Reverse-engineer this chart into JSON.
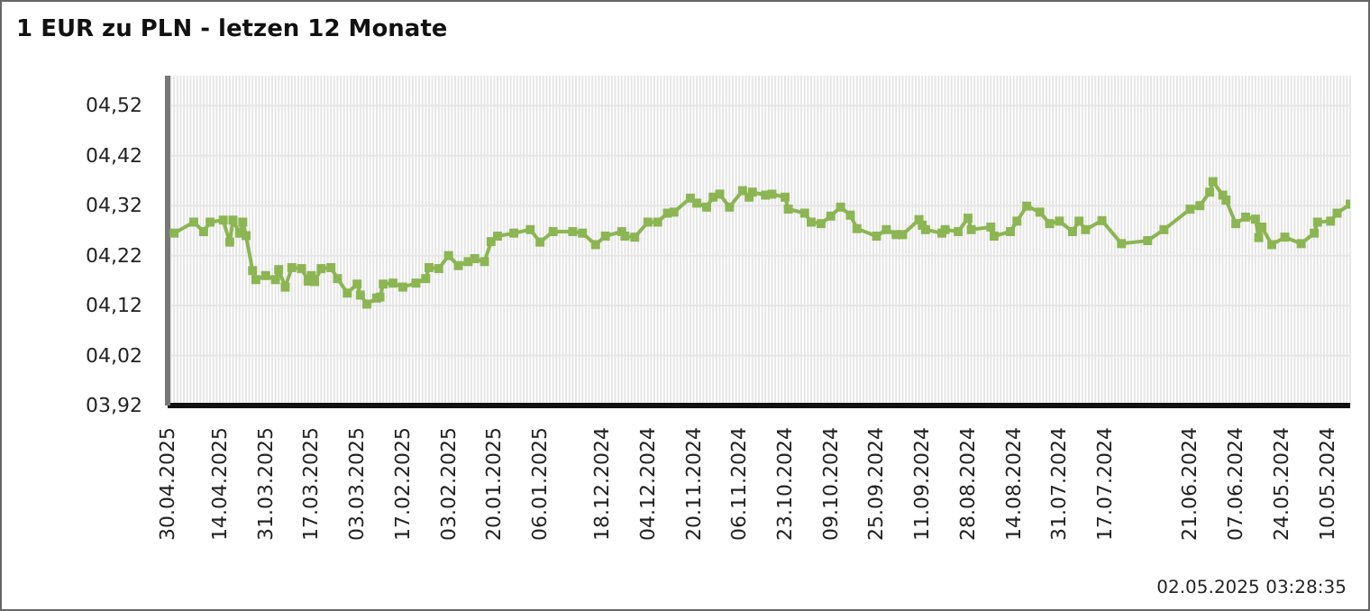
{
  "chart_data": {
    "type": "line",
    "title": "1 EUR zu PLN - letzen 12 Monate",
    "annotations": [
      "02.05.2025 03:28:35"
    ],
    "x": [
      "2025-04-28",
      "2025-04-22",
      "2025-04-19",
      "2025-04-17",
      "2025-04-13",
      "2025-04-11",
      "2025-04-10",
      "2025-04-08",
      "2025-04-07",
      "2025-04-06",
      "2025-04-04",
      "2025-04-03",
      "2025-03-31",
      "2025-03-28",
      "2025-03-27",
      "2025-03-25",
      "2025-03-23",
      "2025-03-20",
      "2025-03-18",
      "2025-03-17",
      "2025-03-16",
      "2025-03-14",
      "2025-03-11",
      "2025-03-09",
      "2025-03-06",
      "2025-03-03",
      "2025-03-02",
      "2025-02-28",
      "2025-02-25",
      "2025-02-24",
      "2025-02-23",
      "2025-02-20",
      "2025-02-17",
      "2025-02-13",
      "2025-02-10",
      "2025-02-09",
      "2025-02-06",
      "2025-02-03",
      "2025-01-31",
      "2025-01-28",
      "2025-01-26",
      "2025-01-23",
      "2025-01-21",
      "2025-01-19",
      "2025-01-14",
      "2025-01-09",
      "2025-01-06",
      "2025-01-02",
      "2024-12-27",
      "2024-12-24",
      "2024-12-20",
      "2024-12-17",
      "2024-12-12",
      "2024-12-11",
      "2024-12-08",
      "2024-12-04",
      "2024-12-01",
      "2024-11-28",
      "2024-11-26",
      "2024-11-21",
      "2024-11-19",
      "2024-11-16",
      "2024-11-14",
      "2024-11-12",
      "2024-11-09",
      "2024-11-05",
      "2024-11-03",
      "2024-11-02",
      "2024-10-29",
      "2024-10-27",
      "2024-10-23",
      "2024-10-22",
      "2024-10-17",
      "2024-10-15",
      "2024-10-12",
      "2024-10-09",
      "2024-10-06",
      "2024-10-03",
      "2024-10-01",
      "2024-09-25",
      "2024-09-22",
      "2024-09-19",
      "2024-09-17",
      "2024-09-12",
      "2024-09-11",
      "2024-09-10",
      "2024-09-05",
      "2024-09-04",
      "2024-08-31",
      "2024-08-28",
      "2024-08-27",
      "2024-08-21",
      "2024-08-20",
      "2024-08-15",
      "2024-08-13",
      "2024-08-10",
      "2024-08-06",
      "2024-08-03",
      "2024-07-31",
      "2024-07-27",
      "2024-07-25",
      "2024-07-23",
      "2024-07-18",
      "2024-07-12",
      "2024-07-04",
      "2024-06-29",
      "2024-06-21",
      "2024-06-18",
      "2024-06-15",
      "2024-06-14",
      "2024-06-11",
      "2024-06-10",
      "2024-06-07",
      "2024-06-04",
      "2024-06-01",
      "2024-05-31",
      "2024-05-30",
      "2024-05-27",
      "2024-05-23",
      "2024-05-18",
      "2024-05-14",
      "2024-05-13",
      "2024-05-09",
      "2024-05-07",
      "2024-05-03"
    ],
    "series": [
      {
        "color": "#8cb553",
        "values": [
          4.265,
          4.287,
          4.268,
          4.287,
          4.291,
          4.247,
          4.291,
          4.265,
          4.287,
          4.26,
          4.19,
          4.172,
          4.18,
          4.172,
          4.192,
          4.157,
          4.196,
          4.194,
          4.169,
          4.18,
          4.168,
          4.194,
          4.196,
          4.174,
          4.145,
          4.163,
          4.141,
          4.123,
          4.135,
          4.137,
          4.163,
          4.165,
          4.157,
          4.165,
          4.174,
          4.196,
          4.194,
          4.22,
          4.2,
          4.208,
          4.214,
          4.208,
          4.248,
          4.259,
          4.265,
          4.272,
          4.247,
          4.268,
          4.268,
          4.265,
          4.242,
          4.259,
          4.268,
          4.259,
          4.257,
          4.287,
          4.287,
          4.305,
          4.307,
          4.335,
          4.325,
          4.317,
          4.337,
          4.343,
          4.317,
          4.35,
          4.337,
          4.347,
          4.341,
          4.343,
          4.337,
          4.313,
          4.305,
          4.287,
          4.284,
          4.299,
          4.317,
          4.301,
          4.274,
          4.259,
          4.272,
          4.262,
          4.262,
          4.292,
          4.281,
          4.272,
          4.265,
          4.272,
          4.268,
          4.295,
          4.272,
          4.277,
          4.259,
          4.268,
          4.289,
          4.319,
          4.307,
          4.284,
          4.289,
          4.268,
          4.289,
          4.272,
          4.29,
          4.244,
          4.25,
          4.272,
          4.313,
          4.32,
          4.347,
          4.368,
          4.341,
          4.331,
          4.284,
          4.297,
          4.293,
          4.256,
          4.277,
          4.242,
          4.257,
          4.244,
          4.265,
          4.287,
          4.289,
          4.305,
          4.323
        ]
      }
    ],
    "xlim": [
      "2025-04-30",
      "2024-05-03"
    ],
    "xticks": [
      {
        "value": "2025-04-30",
        "label": "30.04.2025"
      },
      {
        "value": "2025-04-14",
        "label": "14.04.2025"
      },
      {
        "value": "2025-03-31",
        "label": "31.03.2025"
      },
      {
        "value": "2025-03-17",
        "label": "17.03.2025"
      },
      {
        "value": "2025-03-03",
        "label": "03.03.2025"
      },
      {
        "value": "2025-02-17",
        "label": "17.02.2025"
      },
      {
        "value": "2025-02-03",
        "label": "03.02.2025"
      },
      {
        "value": "2025-01-20",
        "label": "20.01.2025"
      },
      {
        "value": "2025-01-06",
        "label": "06.01.2025"
      },
      {
        "value": "2024-12-18",
        "label": "18.12.2024"
      },
      {
        "value": "2024-12-04",
        "label": "04.12.2024"
      },
      {
        "value": "2024-11-20",
        "label": "20.11.2024"
      },
      {
        "value": "2024-11-06",
        "label": "06.11.2024"
      },
      {
        "value": "2024-10-23",
        "label": "23.10.2024"
      },
      {
        "value": "2024-10-09",
        "label": "09.10.2024"
      },
      {
        "value": "2024-09-25",
        "label": "25.09.2024"
      },
      {
        "value": "2024-09-11",
        "label": "11.09.2024"
      },
      {
        "value": "2024-08-28",
        "label": "28.08.2024"
      },
      {
        "value": "2024-08-14",
        "label": "14.08.2024"
      },
      {
        "value": "2024-07-31",
        "label": "31.07.2024"
      },
      {
        "value": "2024-07-17",
        "label": "17.07.2024"
      },
      {
        "value": "2024-06-21",
        "label": "21.06.2024"
      },
      {
        "value": "2024-06-07",
        "label": "07.06.2024"
      },
      {
        "value": "2024-05-24",
        "label": "24.05.2024"
      },
      {
        "value": "2024-05-10",
        "label": "10.05.2024"
      }
    ],
    "ylim": [
      3.92,
      4.58
    ],
    "yticks": [
      {
        "value": 3.92,
        "label": "03,92"
      },
      {
        "value": 4.02,
        "label": "04,02"
      },
      {
        "value": 4.12,
        "label": "04,12"
      },
      {
        "value": 4.22,
        "label": "04,22"
      },
      {
        "value": 4.32,
        "label": "04,32"
      },
      {
        "value": 4.42,
        "label": "04,42"
      },
      {
        "value": 4.52,
        "label": "04,52"
      }
    ],
    "grid": true,
    "marker": "square",
    "line_style": "solid",
    "legend": false
  }
}
